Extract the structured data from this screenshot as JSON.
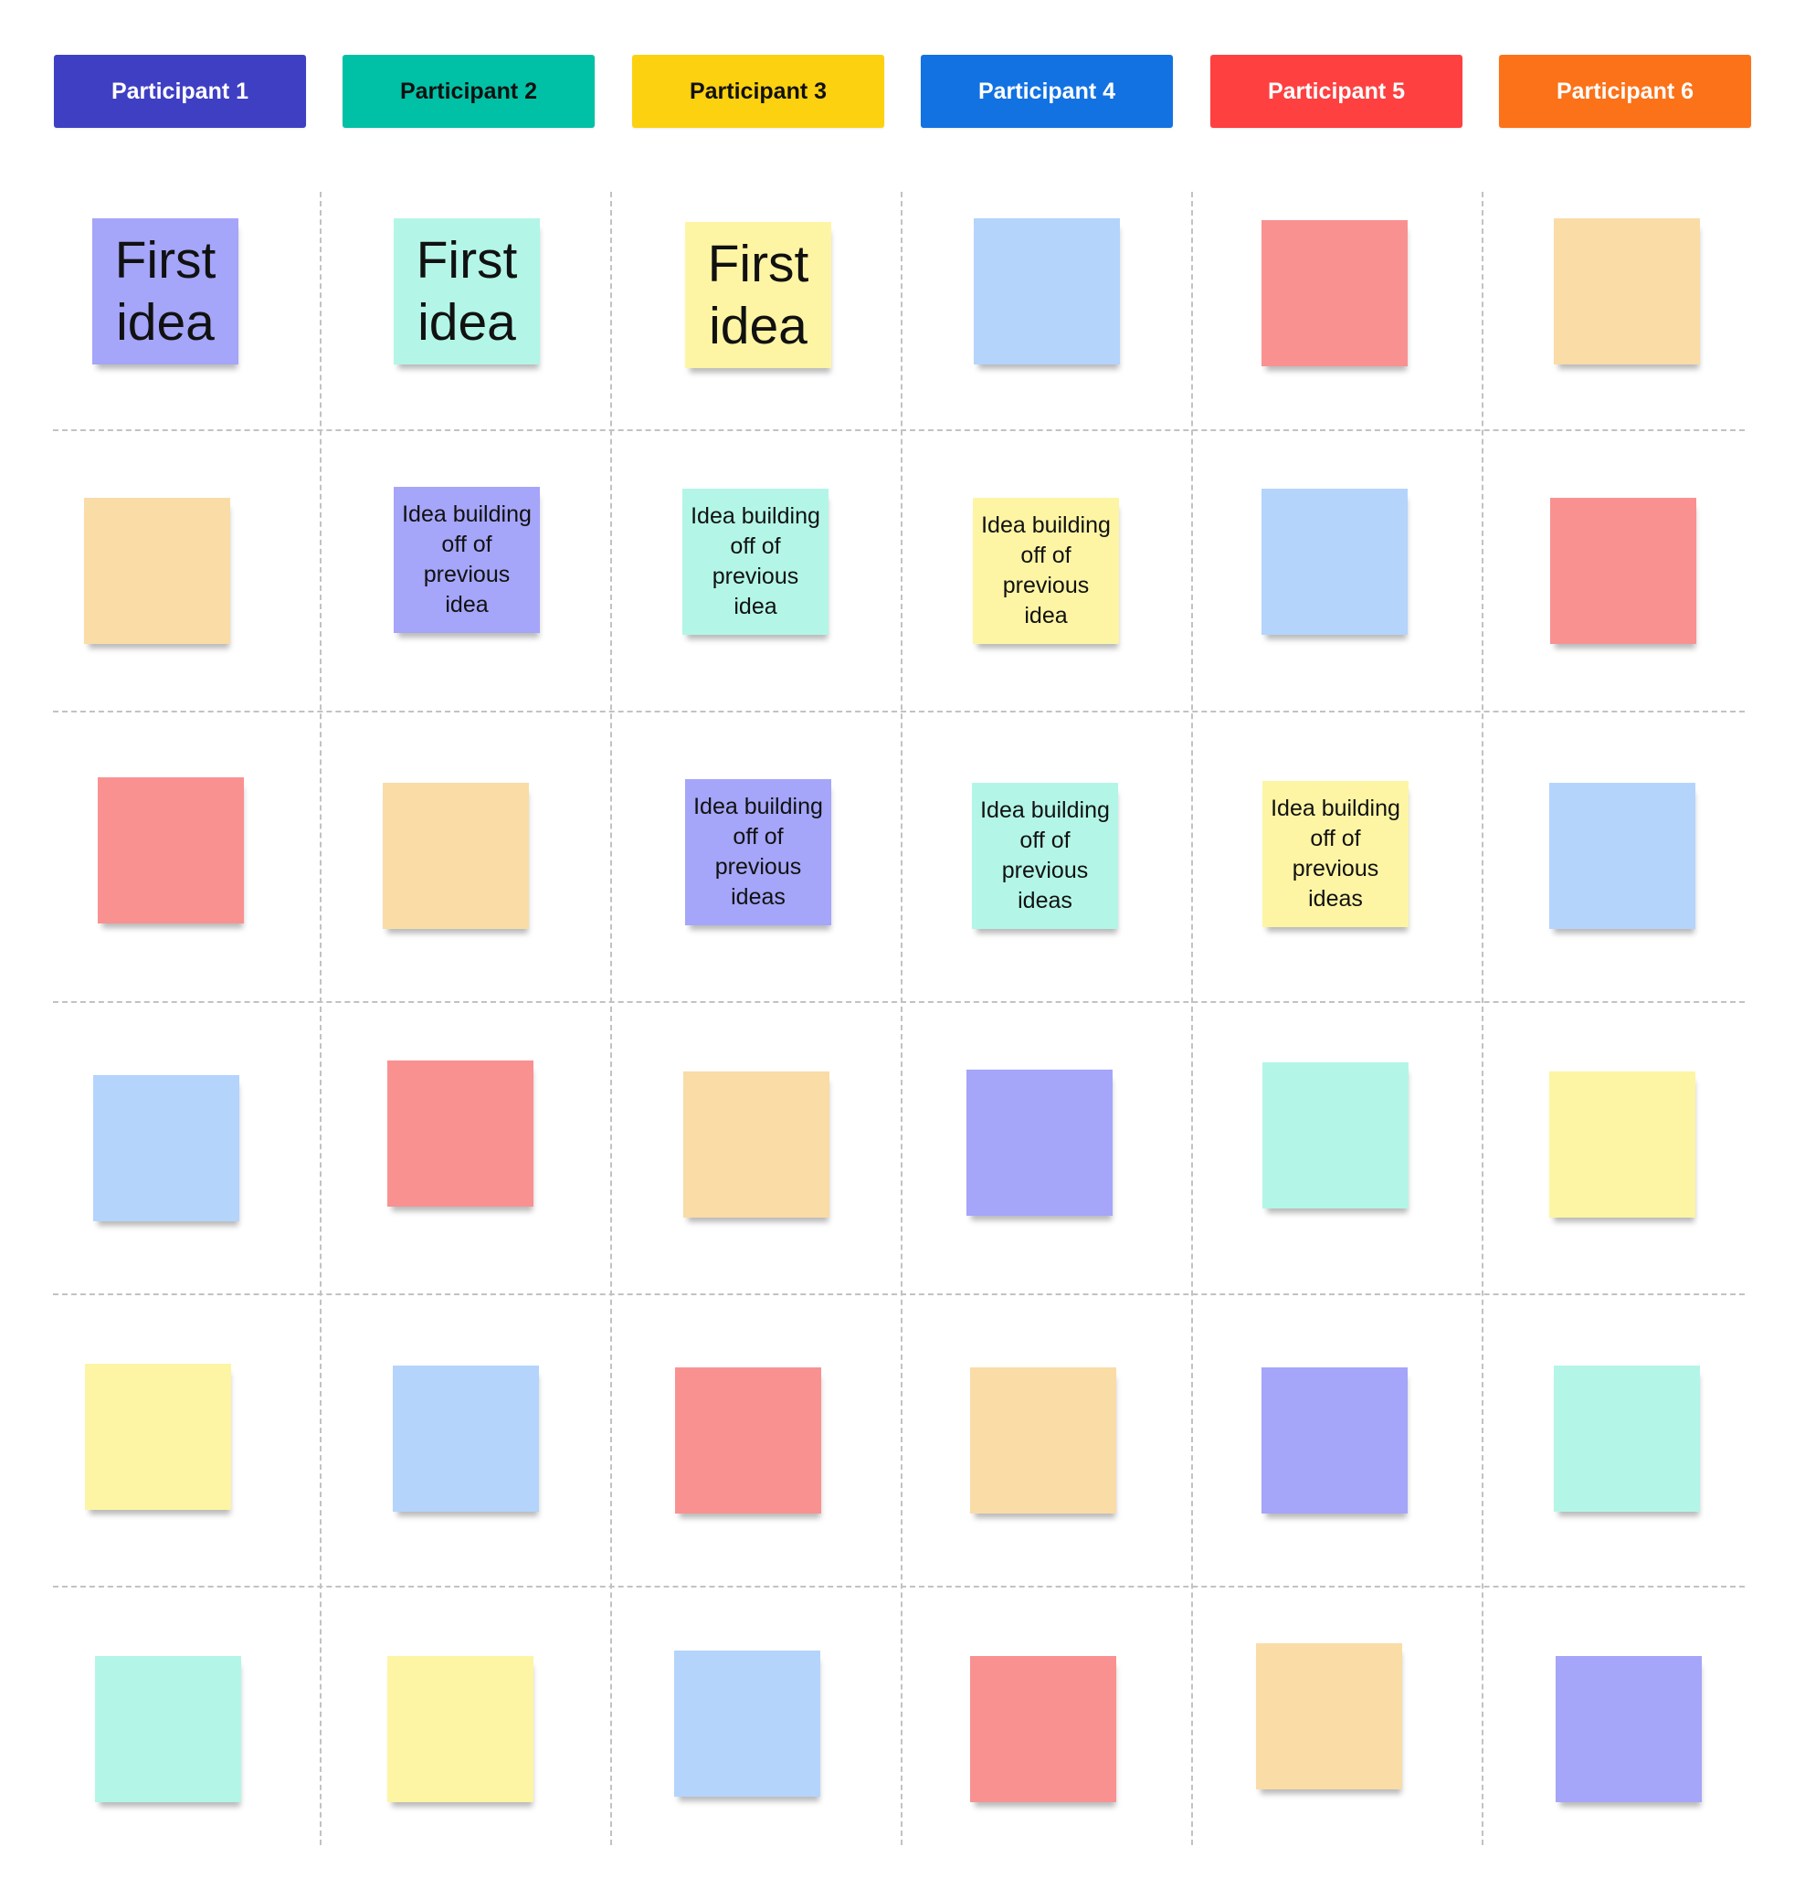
{
  "colors": {
    "purple": "#a5a5f9",
    "teal": "#b3f6e7",
    "yellow": "#fdf5a4",
    "blue": "#b4d4fc",
    "red": "#f99191",
    "orange": "#fadca7"
  },
  "participants": [
    {
      "label": "Participant 1",
      "bg": "#3f3fc4",
      "fg": "#ffffff"
    },
    {
      "label": "Participant 2",
      "bg": "#00c1a5",
      "fg": "#111111"
    },
    {
      "label": "Participant 3",
      "bg": "#fcd10f",
      "fg": "#111111"
    },
    {
      "label": "Participant 4",
      "bg": "#1272e2",
      "fg": "#ffffff"
    },
    {
      "label": "Participant 5",
      "bg": "#fe4040",
      "fg": "#ffffff"
    },
    {
      "label": "Participant 6",
      "bg": "#fb7219",
      "fg": "#ffffff"
    }
  ],
  "rows": [
    [
      {
        "color": "purple",
        "text": "First idea",
        "size": "big"
      },
      {
        "color": "teal",
        "text": "First idea",
        "size": "big"
      },
      {
        "color": "yellow",
        "text": "First idea",
        "size": "big"
      },
      {
        "color": "blue",
        "text": ""
      },
      {
        "color": "red",
        "text": ""
      },
      {
        "color": "orange",
        "text": ""
      }
    ],
    [
      {
        "color": "orange",
        "text": ""
      },
      {
        "color": "purple",
        "text": "Idea building off of previous idea",
        "size": "small"
      },
      {
        "color": "teal",
        "text": "Idea building off of previous idea",
        "size": "small"
      },
      {
        "color": "yellow",
        "text": "Idea building off of previous idea",
        "size": "small"
      },
      {
        "color": "blue",
        "text": ""
      },
      {
        "color": "red",
        "text": ""
      }
    ],
    [
      {
        "color": "red",
        "text": ""
      },
      {
        "color": "orange",
        "text": ""
      },
      {
        "color": "purple",
        "text": "Idea building off of previous ideas",
        "size": "small"
      },
      {
        "color": "teal",
        "text": "Idea building off of previous ideas",
        "size": "small"
      },
      {
        "color": "yellow",
        "text": "Idea building off of previous ideas",
        "size": "small"
      },
      {
        "color": "blue",
        "text": ""
      }
    ],
    [
      {
        "color": "blue",
        "text": ""
      },
      {
        "color": "red",
        "text": ""
      },
      {
        "color": "orange",
        "text": ""
      },
      {
        "color": "purple",
        "text": ""
      },
      {
        "color": "teal",
        "text": ""
      },
      {
        "color": "yellow",
        "text": ""
      }
    ],
    [
      {
        "color": "yellow",
        "text": ""
      },
      {
        "color": "blue",
        "text": ""
      },
      {
        "color": "red",
        "text": ""
      },
      {
        "color": "orange",
        "text": ""
      },
      {
        "color": "purple",
        "text": ""
      },
      {
        "color": "teal",
        "text": ""
      }
    ],
    [
      {
        "color": "teal",
        "text": ""
      },
      {
        "color": "yellow",
        "text": ""
      },
      {
        "color": "blue",
        "text": ""
      },
      {
        "color": "red",
        "text": ""
      },
      {
        "color": "orange",
        "text": ""
      },
      {
        "color": "purple",
        "text": ""
      }
    ]
  ]
}
